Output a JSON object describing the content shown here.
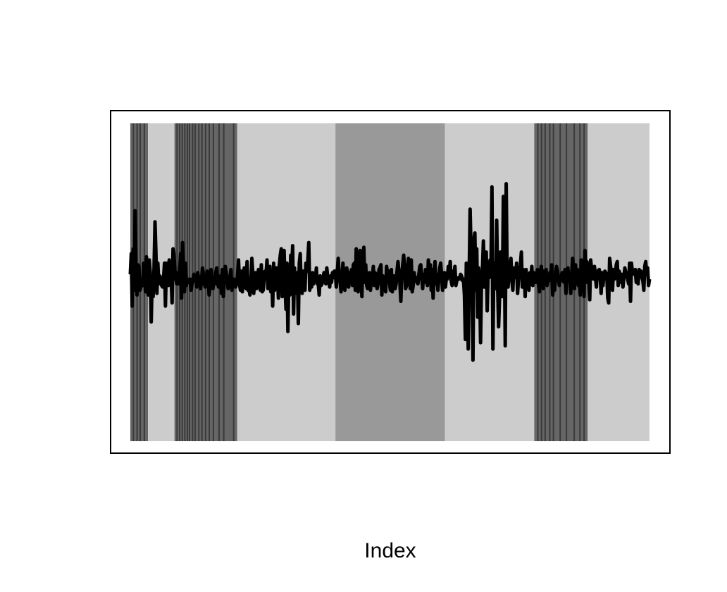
{
  "chart_data": {
    "type": "line",
    "title": "",
    "xlabel": "Index",
    "ylabel": "",
    "axes_shown": false,
    "ylim": [
      -1,
      1
    ],
    "series": [
      {
        "values": [
          0.05,
          0.18,
          -0.15,
          0.21,
          -0.05,
          0.45,
          0.09,
          -0.08,
          0.11,
          0.1,
          -0.05,
          -0.03,
          -0.02,
          -0.02,
          0.12,
          0.04,
          -0.06,
          0.16,
          -0.04,
          -0.08,
          0.14,
          0.06,
          -0.25,
          0.01,
          -0.09,
          0.09,
          0.38,
          0.18,
          -0.07,
          0.12,
          -0.01,
          0.04,
          0.03,
          -0.02,
          -0.03,
          0.02,
          0.12,
          -0.15,
          0.12,
          0.09,
          -0.02,
          0.14,
          0.06,
          0.03,
          -0.13,
          0.21,
          0.18,
          0.06,
          0.02,
          -0.01,
          0.06,
          -0.01,
          0.07,
          0.18,
          -0.1,
          0.25,
          0.08,
          -0.06,
          0.12,
          -0.02,
          0.02,
          0.0,
          0.0,
          0.02,
          -0.05,
          -0.01,
          0.01,
          0.05,
          0.01,
          0.04,
          -0.03,
          0.06,
          0.02,
          0.03,
          -0.04,
          0.01,
          0.09,
          0.05,
          -0.01,
          -0.03,
          0.02,
          0.07,
          0.01,
          -0.08,
          -0.02,
          0.08,
          0.03,
          -0.04,
          0.01,
          -0.01,
          0.06,
          0.09,
          -0.01,
          -0.03,
          0.02,
          0.04,
          -0.07,
          0.08,
          -0.09,
          0.02,
          0.1,
          0.06,
          0.02,
          -0.04,
          -0.01,
          0.03,
          0.08,
          -0.05,
          0.01,
          0.02,
          0.0,
          -0.03,
          -0.01,
          0.05,
          0.14,
          -0.01,
          -0.05,
          0.07,
          -0.06,
          0.03,
          0.09,
          -0.01,
          -0.04,
          0.13,
          -0.05,
          -0.04,
          -0.08,
          -0.02,
          0.15,
          0.06,
          -0.07,
          0.0,
          0.06,
          -0.04,
          0.02,
          0.08,
          0.01,
          -0.05,
          0.11,
          -0.06,
          -0.05,
          0.02,
          0.07,
          0.05,
          0.14,
          -0.04,
          0.02,
          0.1,
          -0.06,
          0.04,
          -0.15,
          0.12,
          -0.05,
          0.03,
          0.09,
          0.06,
          -0.1,
          0.11,
          0.17,
          0.21,
          -0.09,
          0.03,
          0.2,
          -0.02,
          -0.17,
          0.12,
          -0.31,
          0.04,
          -0.08,
          0.17,
          0.03,
          0.23,
          -0.2,
          0.09,
          -0.07,
          0.04,
          0.06,
          -0.26,
          0.12,
          0.18,
          -0.03,
          -0.07,
          0.07,
          0.0,
          -0.05,
          0.12,
          0.07,
          0.13,
          0.25,
          -0.05,
          0.01,
          -0.03,
          0.06,
          -0.01,
          0.05,
          0.02,
          0.09,
          -0.01,
          -0.01,
          -0.08,
          0.04,
          -0.02,
          -0.01,
          0.02,
          0.06,
          0.06,
          -0.01,
          0.09,
          0.03,
          0.02,
          -0.03,
          0.04,
          0.0,
          0.06,
          0.03,
          0.07,
          0.07,
          -0.03,
          0.06,
          0.15,
          0.05,
          0.01,
          -0.06,
          0.03,
          0.12,
          0.03,
          -0.05,
          0.02,
          0.09,
          0.05,
          -0.03,
          0.06,
          0.04,
          0.08,
          -0.02,
          0.11,
          0.12,
          -0.05,
          0.21,
          0.13,
          -0.06,
          0.09,
          0.2,
          0.04,
          -0.09,
          0.16,
          0.22,
          0.0,
          0.11,
          -0.02,
          -0.04,
          0.03,
          0.06,
          -0.05,
          0.03,
          0.01,
          0.1,
          -0.02,
          0.06,
          0.05,
          -0.04,
          -0.01,
          0.08,
          0.09,
          0.11,
          -0.08,
          0.04,
          -0.02,
          0.03,
          -0.06,
          0.1,
          0.05,
          0.07,
          0.0,
          -0.05,
          0.08,
          -0.06,
          0.02,
          0.04,
          -0.04,
          -0.01,
          0.07,
          0.13,
          0.06,
          0.0,
          -0.12,
          0.05,
          0.11,
          0.17,
          0.09,
          -0.04,
          -0.02,
          0.08,
          0.15,
          0.02,
          -0.04,
          0.14,
          -0.06,
          -0.02,
          0.06,
          0.01,
          0.03,
          0.0,
          -0.01,
          0.05,
          0.1,
          0.11,
          0.03,
          -0.04,
          0.05,
          0.0,
          0.08,
          0.04,
          -0.02,
          0.14,
          0.07,
          0.11,
          -0.05,
          0.08,
          -0.1,
          0.06,
          0.13,
          -0.01,
          0.05,
          -0.05,
          0.02,
          0.09,
          0.12,
          0.04,
          -0.05,
          0.0,
          0.06,
          -0.03,
          0.03,
          0.02,
          0.1,
          0.04,
          0.13,
          0.01,
          -0.02,
          0.07,
          0.04,
          0.1,
          -0.02,
          0.01,
          0.02,
          0.03,
          0.02,
          0.05,
          0.04,
          0.01,
          0.02,
          -0.08,
          -0.36,
          0.12,
          0.02,
          -0.42,
          0.05,
          0.46,
          0.19,
          0.02,
          -0.49,
          0.27,
          0.31,
          -0.05,
          0.21,
          -0.22,
          0.09,
          0.02,
          -0.38,
          0.01,
          0.08,
          0.26,
          -0.03,
          0.04,
          0.19,
          -0.18,
          0.08,
          0.03,
          0.14,
          0.11,
          0.6,
          -0.42,
          0.12,
          0.02,
          -0.04,
          0.39,
          -0.02,
          -0.28,
          -0.1,
          0.19,
          -0.05,
          -0.09,
          0.54,
          0.27,
          -0.4,
          0.62,
          0.05,
          -0.03,
          0.08,
          0.11,
          0.15,
          0.01,
          -0.05,
          0.09,
          0.06,
          0.03,
          0.12,
          -0.07,
          0.02,
          0.05,
          0.11,
          0.19,
          -0.03,
          0.08,
          0.05,
          -0.09,
          0.08,
          0.0,
          0.03,
          -0.05,
          0.06,
          0.01,
          0.1,
          -0.02,
          0.06,
          0.03,
          0.0,
          0.04,
          0.08,
          -0.01,
          -0.06,
          0.05,
          0.1,
          0.03,
          -0.04,
          0.07,
          0.02,
          0.08,
          -0.02,
          0.03,
          0.01,
          0.06,
          0.04,
          0.11,
          -0.08,
          0.02,
          -0.05,
          0.05,
          0.1,
          0.07,
          0.02,
          -0.02,
          0.03,
          0.04,
          0.06,
          0.01,
          0.0,
          0.08,
          -0.07,
          0.05,
          0.09,
          0.01,
          0.05,
          -0.07,
          0.05,
          0.15,
          0.08,
          -0.04,
          0.11,
          0.02,
          0.08,
          -0.02,
          0.03,
          -0.08,
          0.14,
          0.04,
          0.11,
          -0.09,
          0.2,
          0.0,
          0.13,
          0.1,
          0.03,
          -0.11,
          0.14,
          0.08,
          0.07,
          0.02,
          0.1,
          0.04,
          -0.03,
          0.07,
          0.05,
          0.08,
          0.04,
          -0.07,
          0.06,
          -0.02,
          0.05,
          0.07,
          0.06,
          0.05,
          -0.1,
          -0.13,
          0.15,
          0.1,
          0.05,
          -0.05,
          0.08,
          0.02,
          0.04,
          0.11,
          0.13,
          -0.02,
          0.07,
          0.05,
          0.0,
          0.05,
          -0.03,
          0.03,
          0.09,
          0.06,
          0.04,
          0.02,
          -0.01,
          0.12,
          -0.12,
          0.12,
          0.06,
          0.07,
          0.05,
          0.08,
          0.0,
          0.06,
          -0.01,
          0.08,
          0.04,
          0.07,
          0.03,
          0.01,
          -0.05,
          0.1,
          0.13,
          0.05,
          0.09,
          -0.02,
          0.02
        ]
      }
    ],
    "regions": [
      {
        "start": 0.0,
        "end": 0.034,
        "color": "#666666"
      },
      {
        "start": 0.034,
        "end": 0.085,
        "color": "#cccccc"
      },
      {
        "start": 0.085,
        "end": 0.206,
        "color": "#666666"
      },
      {
        "start": 0.206,
        "end": 0.395,
        "color": "#cccccc"
      },
      {
        "start": 0.395,
        "end": 0.606,
        "color": "#999999"
      },
      {
        "start": 0.606,
        "end": 0.778,
        "color": "#cccccc"
      },
      {
        "start": 0.778,
        "end": 0.881,
        "color": "#666666"
      },
      {
        "start": 0.881,
        "end": 1.0,
        "color": "#cccccc"
      }
    ],
    "stripes": [
      0.006,
      0.013,
      0.019,
      0.027,
      0.09,
      0.095,
      0.1,
      0.105,
      0.11,
      0.114,
      0.12,
      0.125,
      0.132,
      0.138,
      0.145,
      0.152,
      0.16,
      0.171,
      0.18,
      0.199,
      0.785,
      0.792,
      0.799,
      0.808,
      0.815,
      0.828,
      0.84,
      0.855,
      0.866,
      0.874
    ],
    "colors": {
      "line": "#000000",
      "stripe": "#3a3a3a",
      "frame": "#000000"
    }
  }
}
